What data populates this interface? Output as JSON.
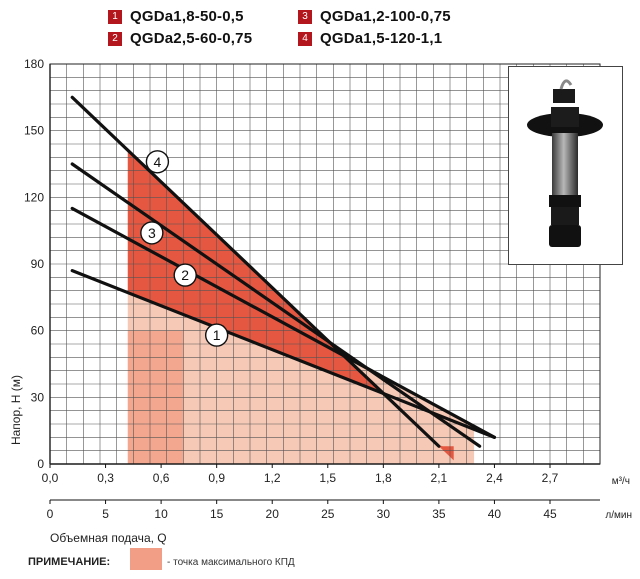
{
  "legend": [
    {
      "num": "1",
      "label": "QGDa1,8-50-0,5"
    },
    {
      "num": "2",
      "label": "QGDa2,5-60-0,75"
    },
    {
      "num": "3",
      "label": "QGDa1,2-100-0,75"
    },
    {
      "num": "4",
      "label": "QGDa1,5-120-1,1"
    }
  ],
  "note": {
    "label": "ПРИМЕЧАНИЕ:",
    "text": "- точка максимального КПД"
  },
  "colors": {
    "curve": "#111111",
    "zone_dark": "#e34a33",
    "zone_light": "#f6c9b6",
    "badge": "#b3171d"
  },
  "chart_data": {
    "type": "line",
    "x_ticks_m3h": [
      "0,0",
      "0,3",
      "0,6",
      "0,9",
      "1,2",
      "1,5",
      "1,8",
      "2,1",
      "2,4",
      "2,7"
    ],
    "x_ticks_lmin": [
      "0",
      "5",
      "10",
      "15",
      "20",
      "25",
      "30",
      "35",
      "40",
      "45"
    ],
    "y_ticks": [
      "0",
      "30",
      "60",
      "90",
      "120",
      "150",
      "180"
    ],
    "xunit_top": "м³/ч",
    "xunit_bottom": "л/мин",
    "xlabel": "Объемная подача, Q",
    "ylabel": "Напор, H (м)",
    "xlim": [
      0,
      2.97
    ],
    "ylim": [
      0,
      180
    ],
    "grid": true,
    "series": [
      {
        "name": "1",
        "x": [
          0.12,
          2.4
        ],
        "y": [
          87,
          12
        ],
        "label_at": [
          0.9,
          58
        ]
      },
      {
        "name": "2",
        "x": [
          0.12,
          2.4
        ],
        "y": [
          115,
          12
        ],
        "label_at": [
          0.73,
          85
        ]
      },
      {
        "name": "3",
        "x": [
          0.12,
          2.32
        ],
        "y": [
          135,
          8
        ],
        "label_at": [
          0.55,
          104
        ]
      },
      {
        "name": "4",
        "x": [
          0.12,
          2.1
        ],
        "y": [
          165,
          8
        ],
        "label_at": [
          0.58,
          136
        ]
      }
    ],
    "efficiency_zones": [
      {
        "x_from": 0.42,
        "x_to": 0.72,
        "light_to": 2.29
      }
    ]
  }
}
